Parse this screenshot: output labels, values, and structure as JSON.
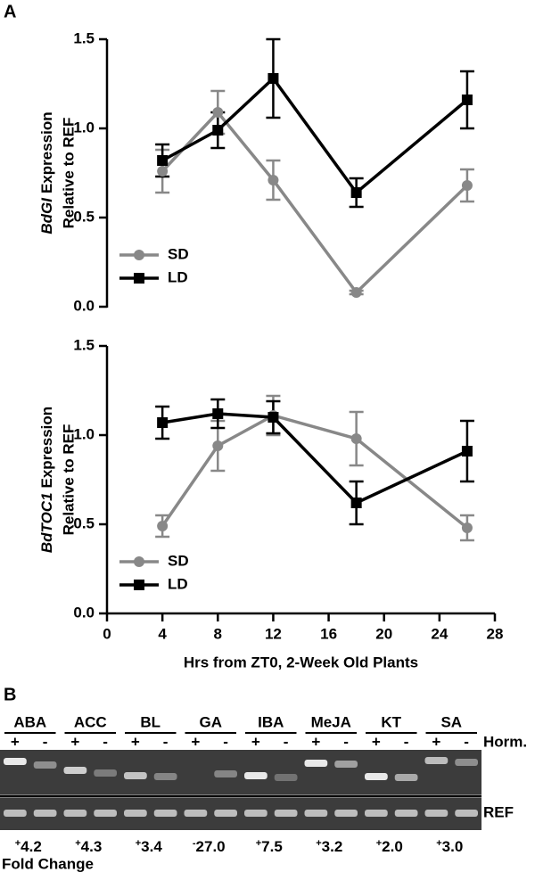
{
  "panels": {
    "a": "A",
    "b": "B"
  },
  "chart_data": [
    {
      "type": "line",
      "ylabel_gene": "BdGI",
      "ylabel_line1": "Expression",
      "ylabel_line2": "Relative to REF",
      "x": [
        4,
        8,
        12,
        18,
        26
      ],
      "xlim": [
        0,
        28
      ],
      "show_xaxis": false,
      "ylim": [
        0,
        1.5
      ],
      "yticks": [
        {
          "value": 0,
          "label": "0.0"
        },
        {
          "value": 0.5,
          "label": "0.5"
        },
        {
          "value": 1,
          "label": "1.0"
        },
        {
          "value": 1.5,
          "label": "1.5"
        }
      ],
      "legend": "lower left",
      "series": [
        {
          "name": "SD",
          "color": "#888888",
          "marker": "circle",
          "values": [
            0.76,
            1.09,
            0.71,
            0.08,
            0.68
          ],
          "errors": [
            0.12,
            0.12,
            0.11,
            0.01,
            0.09
          ]
        },
        {
          "name": "LD",
          "color": "#000000",
          "marker": "square",
          "values": [
            0.82,
            0.99,
            1.28,
            0.64,
            1.16
          ],
          "errors": [
            0.09,
            0.1,
            0.22,
            0.08,
            0.16
          ]
        }
      ]
    },
    {
      "type": "line",
      "ylabel_gene": "BdTOC1",
      "ylabel_line1": "Expression",
      "ylabel_line2": "Relative to REF",
      "x": [
        4,
        8,
        12,
        18,
        26
      ],
      "xlim": [
        0,
        28
      ],
      "show_xaxis": true,
      "xticks": [
        0,
        4,
        8,
        12,
        16,
        20,
        24,
        28
      ],
      "xlabel": "Hrs from ZT0, 2-Week Old Plants",
      "ylim": [
        0,
        1.5
      ],
      "yticks": [
        {
          "value": 0,
          "label": "0.0"
        },
        {
          "value": 0.5,
          "label": "0.5"
        },
        {
          "value": 1,
          "label": "1.0"
        },
        {
          "value": 1.5,
          "label": "1.5"
        }
      ],
      "legend": "lower left",
      "series": [
        {
          "name": "SD",
          "color": "#888888",
          "marker": "circle",
          "values": [
            0.49,
            0.94,
            1.11,
            0.98,
            0.48
          ],
          "errors": [
            0.06,
            0.14,
            0.11,
            0.15,
            0.07
          ]
        },
        {
          "name": "LD",
          "color": "#000000",
          "marker": "square",
          "values": [
            1.07,
            1.12,
            1.1,
            0.62,
            0.91
          ],
          "errors": [
            0.09,
            0.08,
            0.09,
            0.12,
            0.17
          ]
        }
      ]
    }
  ],
  "gel": {
    "hormones": [
      "ABA",
      "ACC",
      "BL",
      "GA",
      "IBA",
      "MeJA",
      "KT",
      "SA"
    ],
    "signs": [
      "+",
      "-"
    ],
    "hormone_row": "Horm.",
    "reference_row": "REF",
    "fold_changes": [
      {
        "sign": "+",
        "label": "4.2"
      },
      {
        "sign": "+",
        "label": "4.3"
      },
      {
        "sign": "+",
        "label": "3.4"
      },
      {
        "sign": "-",
        "label": "27.0"
      },
      {
        "sign": "+",
        "label": "7.5"
      },
      {
        "sign": "+",
        "label": "3.2"
      },
      {
        "sign": "+",
        "label": "2.0"
      },
      {
        "sign": "+",
        "label": "3.0"
      }
    ],
    "footer": "Fold Change"
  }
}
